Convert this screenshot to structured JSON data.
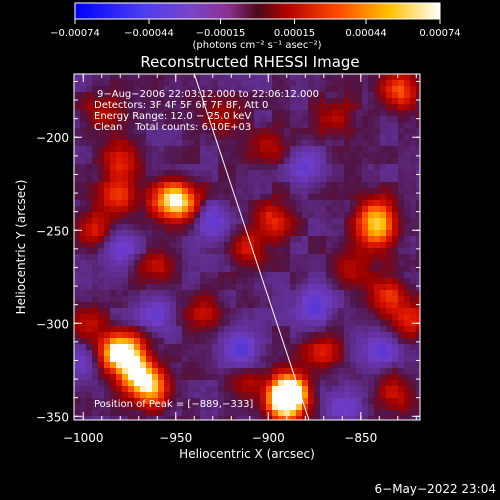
{
  "chart_data": {
    "type": "heatmap",
    "title": "Reconstructed RHESSI Image",
    "xlabel": "Heliocentric X (arcsec)",
    "ylabel": "Heliocentric Y (arcsec)",
    "xlim": [
      -1005,
      -818
    ],
    "ylim": [
      -352,
      -166
    ],
    "x_ticks": [
      -1000,
      -950,
      -900,
      -850
    ],
    "x_tick_labels": [
      "−1000",
      "−950",
      "−900",
      "−850"
    ],
    "y_ticks": [
      -200,
      -250,
      -300,
      -350
    ],
    "y_tick_labels": [
      "−200",
      "−250",
      "−300",
      "−350"
    ],
    "colorbar": {
      "range": [
        -0.00074,
        0.00074
      ],
      "ticks": [
        -0.00074,
        -0.00044,
        -0.00015,
        0.00015,
        0.00044,
        0.00074
      ],
      "tick_labels": [
        "−0.00074",
        "−0.00044",
        "−0.00015",
        "0.00015",
        "0.00044",
        "0.00074"
      ],
      "unit_label": "(photons cm⁻² s⁻¹ asec⁻²)"
    },
    "annotations": [
      "9−Aug−2006 22:03:12.000 to 22:06:12.000",
      "Detectors: 3F 4F 5F 6F 7F 8F, Att 0",
      "Energy Range: 12.0 − 25.0 keV",
      "Clean    Total counts: 6.10E+03"
    ],
    "peak_label": "Position of Peak = [−889,−333]",
    "peak": [
      -889,
      -333
    ],
    "limb_line": [
      [
        -940,
        -166
      ],
      [
        -878,
        -352
      ]
    ],
    "bright_sources": [
      {
        "x": -889,
        "y": -337,
        "intensity": 1.0
      },
      {
        "x": -891,
        "y": -343,
        "intensity": 0.95
      },
      {
        "x": -976,
        "y": -316,
        "intensity": 0.8
      },
      {
        "x": -971,
        "y": -328,
        "intensity": 0.78
      },
      {
        "x": -963,
        "y": -335,
        "intensity": 0.72
      },
      {
        "x": -985,
        "y": -316,
        "intensity": 0.6
      },
      {
        "x": -946,
        "y": -235,
        "intensity": 0.68
      },
      {
        "x": -955,
        "y": -233,
        "intensity": 0.55
      },
      {
        "x": -981,
        "y": -231,
        "intensity": 0.5
      },
      {
        "x": -980,
        "y": -212,
        "intensity": 0.45
      },
      {
        "x": -842,
        "y": -242,
        "intensity": 0.62
      },
      {
        "x": -842,
        "y": -252,
        "intensity": 0.55
      },
      {
        "x": -830,
        "y": -175,
        "intensity": 0.55
      },
      {
        "x": -897,
        "y": -245,
        "intensity": 0.45
      },
      {
        "x": -911,
        "y": -260,
        "intensity": 0.38
      },
      {
        "x": -835,
        "y": -285,
        "intensity": 0.45
      },
      {
        "x": -823,
        "y": -298,
        "intensity": 0.4
      },
      {
        "x": -995,
        "y": -250,
        "intensity": 0.4
      },
      {
        "x": -998,
        "y": -300,
        "intensity": 0.3
      },
      {
        "x": -871,
        "y": -315,
        "intensity": 0.38
      },
      {
        "x": -912,
        "y": -330,
        "intensity": 0.32
      },
      {
        "x": -832,
        "y": -338,
        "intensity": 0.35
      },
      {
        "x": -863,
        "y": -190,
        "intensity": 0.32
      },
      {
        "x": -900,
        "y": -205,
        "intensity": 0.28
      },
      {
        "x": -935,
        "y": -293,
        "intensity": 0.3
      },
      {
        "x": -990,
        "y": -186,
        "intensity": 0.3
      },
      {
        "x": -855,
        "y": -270,
        "intensity": 0.3
      },
      {
        "x": -960,
        "y": -270,
        "intensity": 0.28
      },
      {
        "x": -925,
        "y": -190,
        "intensity": 0.25
      }
    ],
    "negative_sources": [
      {
        "x": -915,
        "y": -315,
        "intensity": 0.5
      },
      {
        "x": -930,
        "y": -245,
        "intensity": 0.4
      },
      {
        "x": -875,
        "y": -290,
        "intensity": 0.45
      },
      {
        "x": -980,
        "y": -260,
        "intensity": 0.35
      },
      {
        "x": -880,
        "y": -215,
        "intensity": 0.35
      },
      {
        "x": -840,
        "y": -315,
        "intensity": 0.4
      },
      {
        "x": -960,
        "y": -295,
        "intensity": 0.35
      },
      {
        "x": -860,
        "y": -345,
        "intensity": 0.3
      },
      {
        "x": -1000,
        "y": -320,
        "intensity": 0.35
      }
    ]
  },
  "footer": {
    "timestamp": "6−May−2022 23:04"
  }
}
